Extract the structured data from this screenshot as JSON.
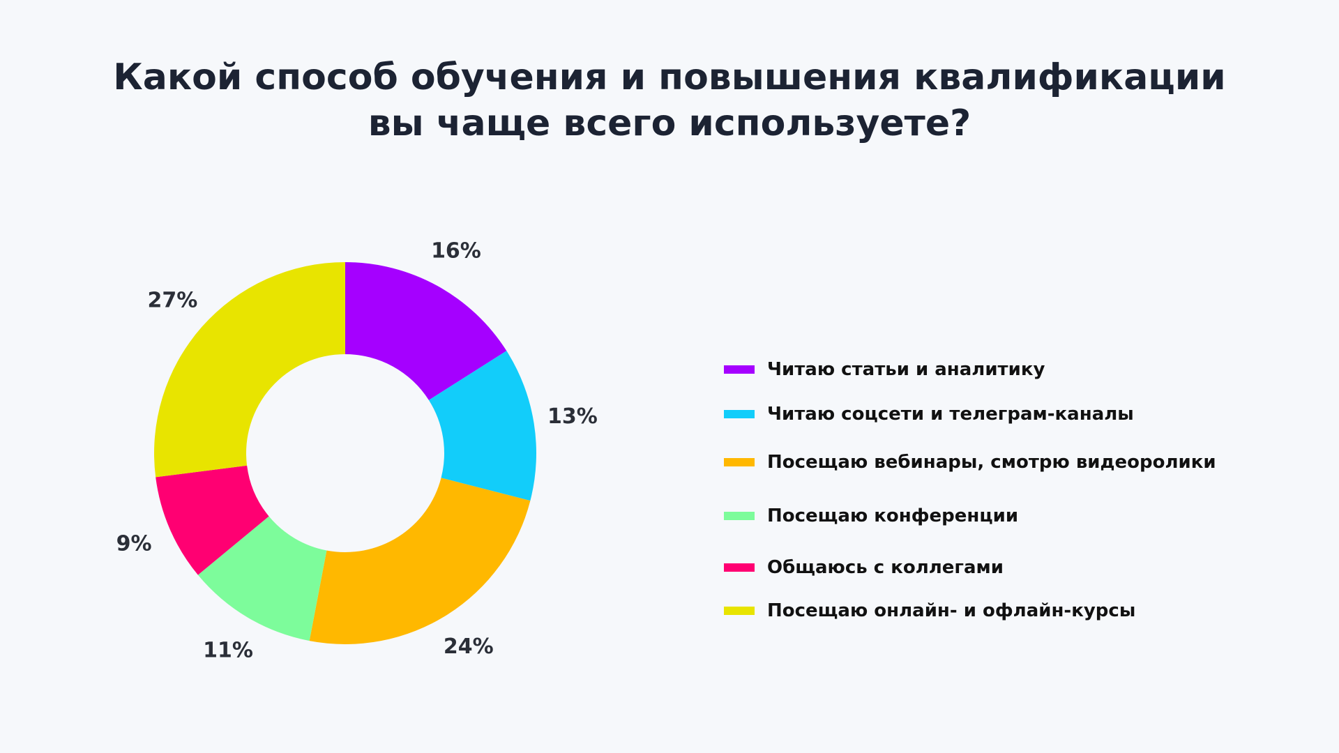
{
  "title": {
    "line1": "Какой способ обучения и повышения квалификации",
    "line2": "вы чаще всего используете?"
  },
  "chart_data": {
    "type": "pie",
    "variant": "donut",
    "legend_position": "right",
    "slices": [
      {
        "label": "Читаю статьи и аналитику",
        "value": 16,
        "value_label": "16%",
        "color": "#a500ff"
      },
      {
        "label": "Читаю соцсети и телеграм-каналы",
        "value": 13,
        "value_label": "13%",
        "color": "#12cdfa"
      },
      {
        "label": "Посещаю вебинары, смотрю видеоролики",
        "value": 24,
        "value_label": "24%",
        "color": "#ffb800"
      },
      {
        "label": "Посещаю конференции",
        "value": 11,
        "value_label": "11%",
        "color": "#7dfc9b"
      },
      {
        "label": "Общаюсь с коллегами",
        "value": 9,
        "value_label": "9%",
        "color": "#ff0072"
      },
      {
        "label": "Посещаю онлайн- и офлайн-курсы",
        "value": 27,
        "value_label": "27%",
        "color": "#e8e400"
      }
    ]
  }
}
